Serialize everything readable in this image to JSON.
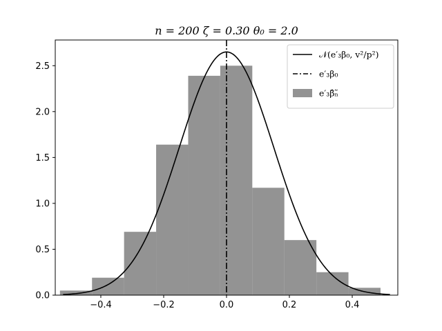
{
  "chart_data": {
    "type": "bar",
    "title": "n = 200 ζ = 0.30 θ₀ = 2.0",
    "xlabel": "",
    "ylabel": "",
    "xlim": [
      -0.545,
      0.545
    ],
    "ylim": [
      0,
      2.78
    ],
    "xticks": [
      -0.4,
      -0.2,
      0.0,
      0.2,
      0.4
    ],
    "xtick_labels": [
      "−0.4",
      "−0.2",
      "0.0",
      "0.2",
      "0.4"
    ],
    "yticks": [
      0.0,
      0.5,
      1.0,
      1.5,
      2.0,
      2.5
    ],
    "ytick_labels": [
      "0.0",
      "0.5",
      "1.0",
      "1.5",
      "2.0",
      "2.5"
    ],
    "grid": false,
    "legend_position": "upper right",
    "histogram": {
      "bin_edges": [
        -0.53,
        -0.428,
        -0.326,
        -0.224,
        -0.122,
        -0.02,
        0.082,
        0.184,
        0.286,
        0.388,
        0.49
      ],
      "density": [
        0.05,
        0.19,
        0.69,
        1.64,
        2.39,
        2.5,
        1.17,
        0.6,
        0.25,
        0.08
      ],
      "color": "#808080"
    },
    "normal_curve": {
      "mean": 0.0,
      "peak": 2.65,
      "color": "#000000"
    },
    "true_value_line": {
      "x": 0.0,
      "style": "dash-dot",
      "color": "#000000"
    },
    "legend": [
      {
        "label": "𝒩(e′₃β₀, v²/p²)",
        "marker": "line"
      },
      {
        "label": "e′₃β₀",
        "marker": "dash-dot"
      },
      {
        "label": "e′₃β̂ₙ̃",
        "marker": "patch"
      }
    ]
  }
}
